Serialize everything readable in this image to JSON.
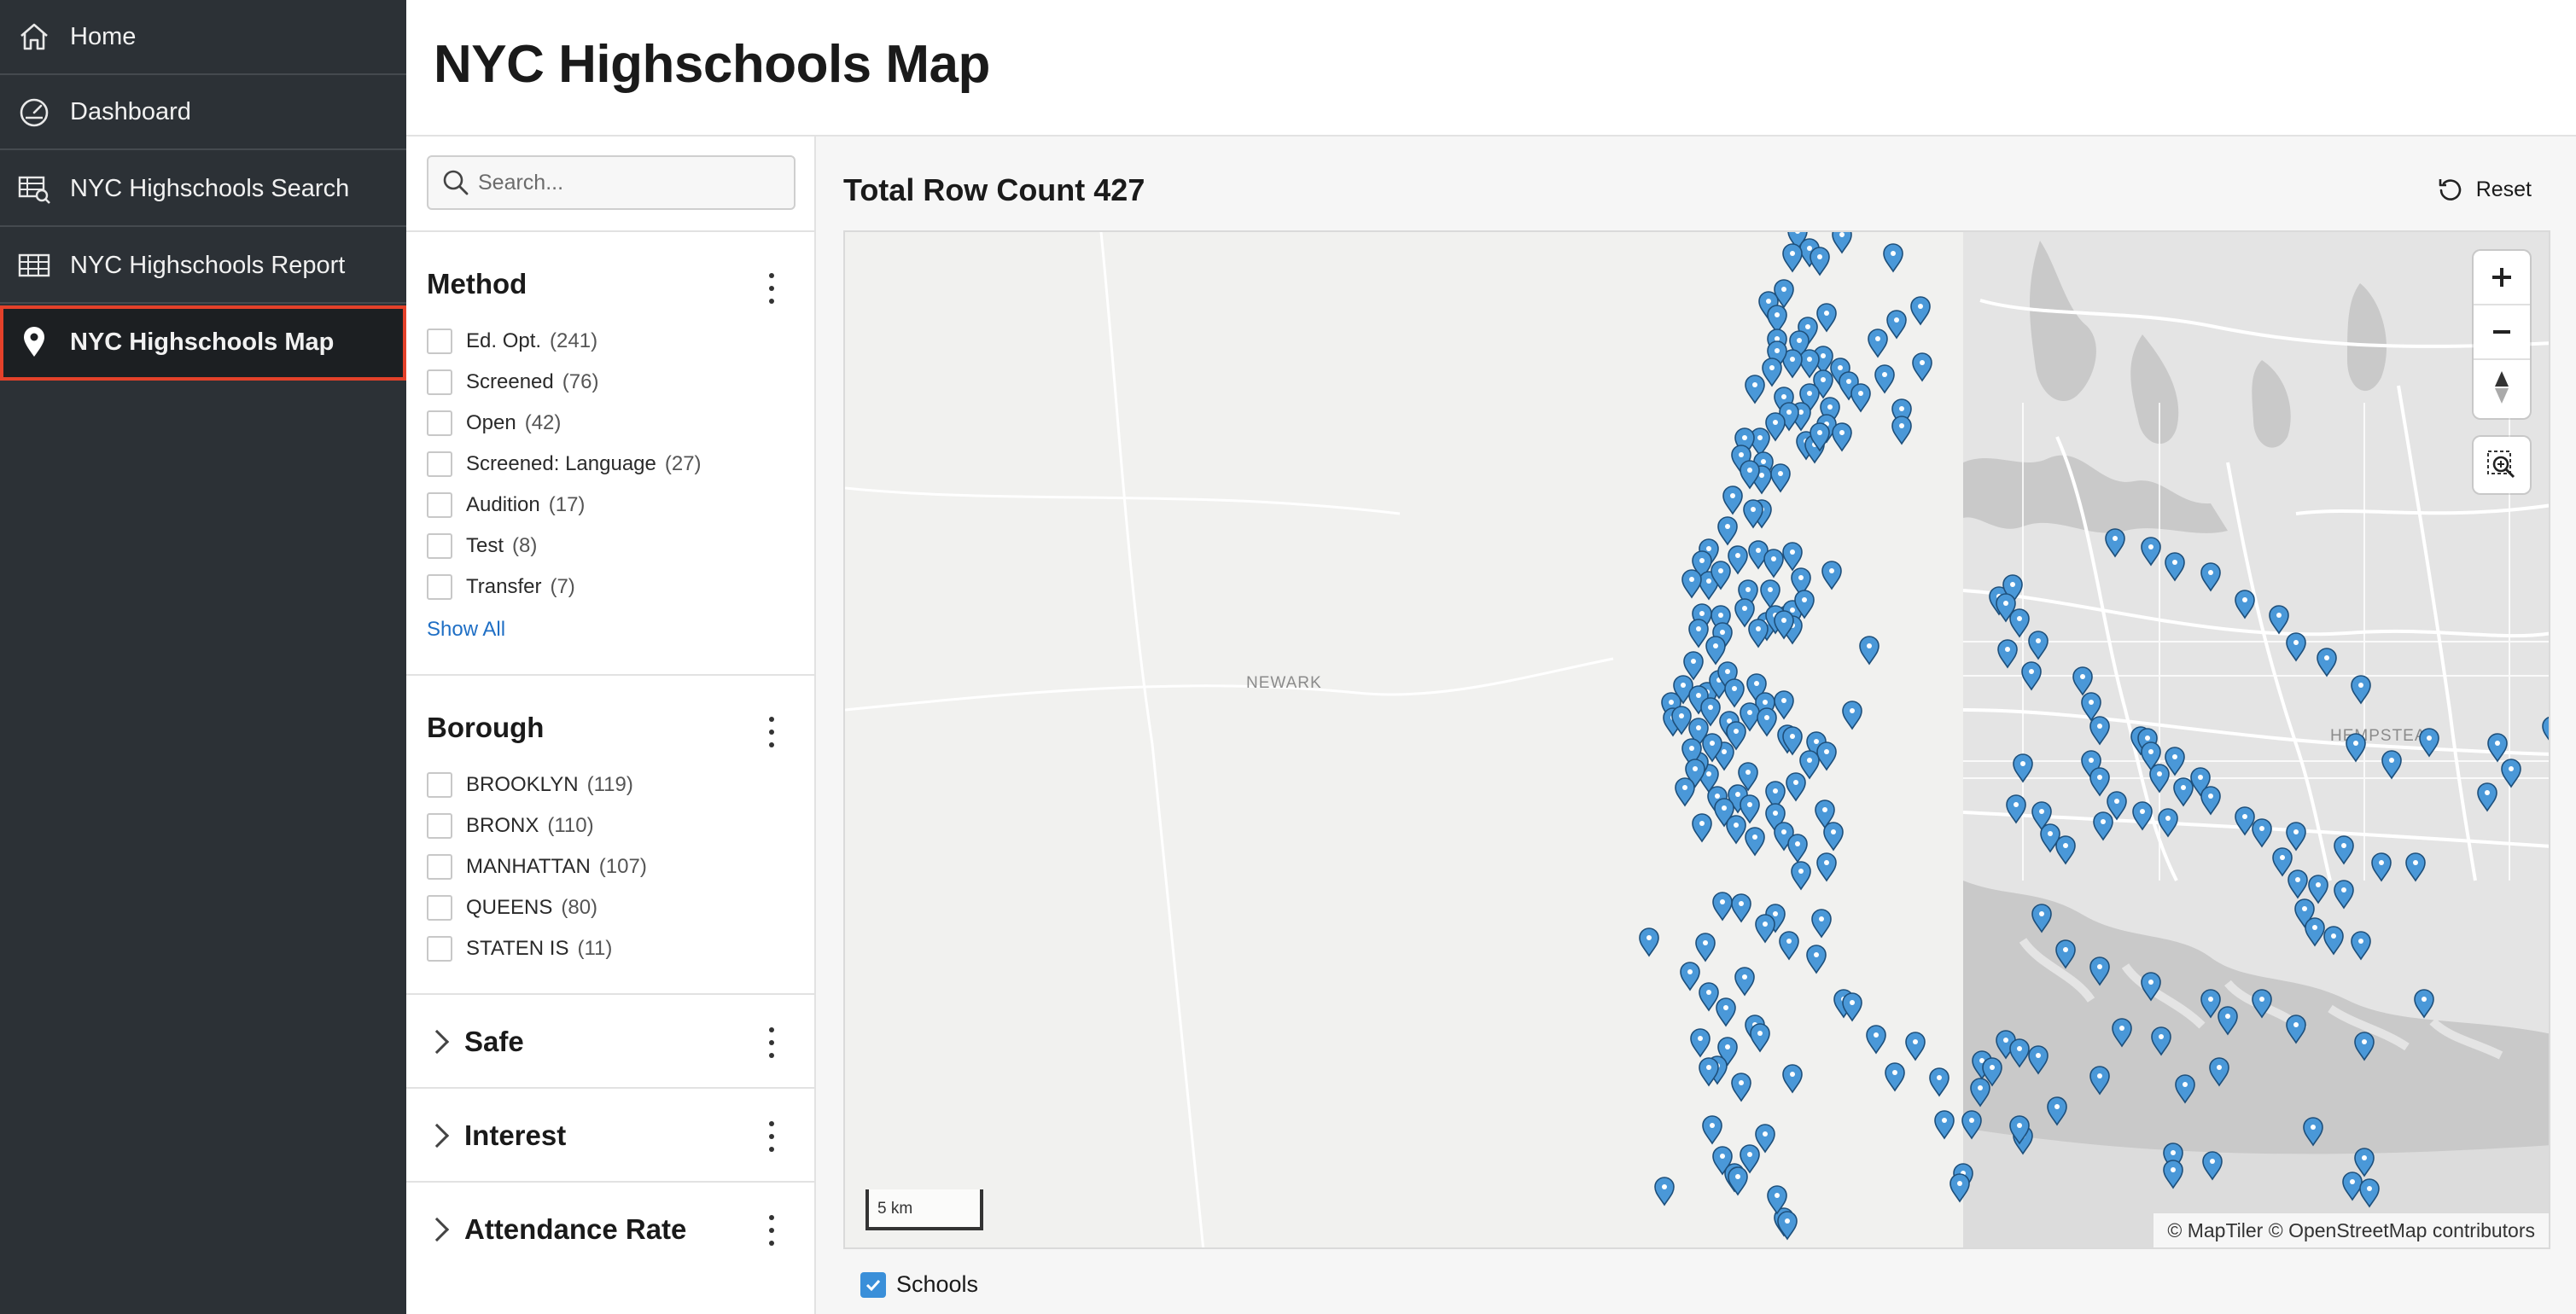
{
  "nav": {
    "items": [
      {
        "label": "Home",
        "icon": "home-icon"
      },
      {
        "label": "Dashboard",
        "icon": "speedometer-icon"
      },
      {
        "label": "NYC Highschools Search",
        "icon": "table-search-icon"
      },
      {
        "label": "NYC Highschools Report",
        "icon": "table-icon"
      },
      {
        "label": "NYC Highschools Map",
        "icon": "map-pin-icon",
        "active": true
      }
    ]
  },
  "header": {
    "title": "NYC Highschools Map"
  },
  "search": {
    "placeholder": "Search..."
  },
  "facets": {
    "method": {
      "title": "Method",
      "options": [
        {
          "label": "Ed. Opt.",
          "count": "(241)"
        },
        {
          "label": "Screened",
          "count": "(76)"
        },
        {
          "label": "Open",
          "count": "(42)"
        },
        {
          "label": "Screened: Language",
          "count": "(27)"
        },
        {
          "label": "Audition",
          "count": "(17)"
        },
        {
          "label": "Test",
          "count": "(8)"
        },
        {
          "label": "Transfer",
          "count": "(7)"
        }
      ],
      "show_all": "Show All"
    },
    "borough": {
      "title": "Borough",
      "options": [
        {
          "label": "BROOKLYN",
          "count": "(119)"
        },
        {
          "label": "BRONX",
          "count": "(110)"
        },
        {
          "label": "MANHATTAN",
          "count": "(107)"
        },
        {
          "label": "QUEENS",
          "count": "(80)"
        },
        {
          "label": "STATEN IS",
          "count": "(11)"
        }
      ]
    },
    "collapsed": [
      {
        "title": "Safe"
      },
      {
        "title": "Interest"
      },
      {
        "title": "Attendance Rate"
      }
    ]
  },
  "results": {
    "row_count": "Total Row Count 427",
    "reset_label": "Reset"
  },
  "map": {
    "labels": {
      "newark": "NEWARK",
      "hempstead": "HEMPSTEAD"
    },
    "scale": "5 km",
    "attribution": "© MapTiler  © OpenStreetMap contributors",
    "marker_color": "#4a98d8",
    "legend_label": "Schools",
    "legend_checked": true
  },
  "colors": {
    "nav_bg": "#2c3136",
    "active_outline": "#e4412a",
    "link": "#1f6fc5",
    "marker": "#4a98d8"
  }
}
